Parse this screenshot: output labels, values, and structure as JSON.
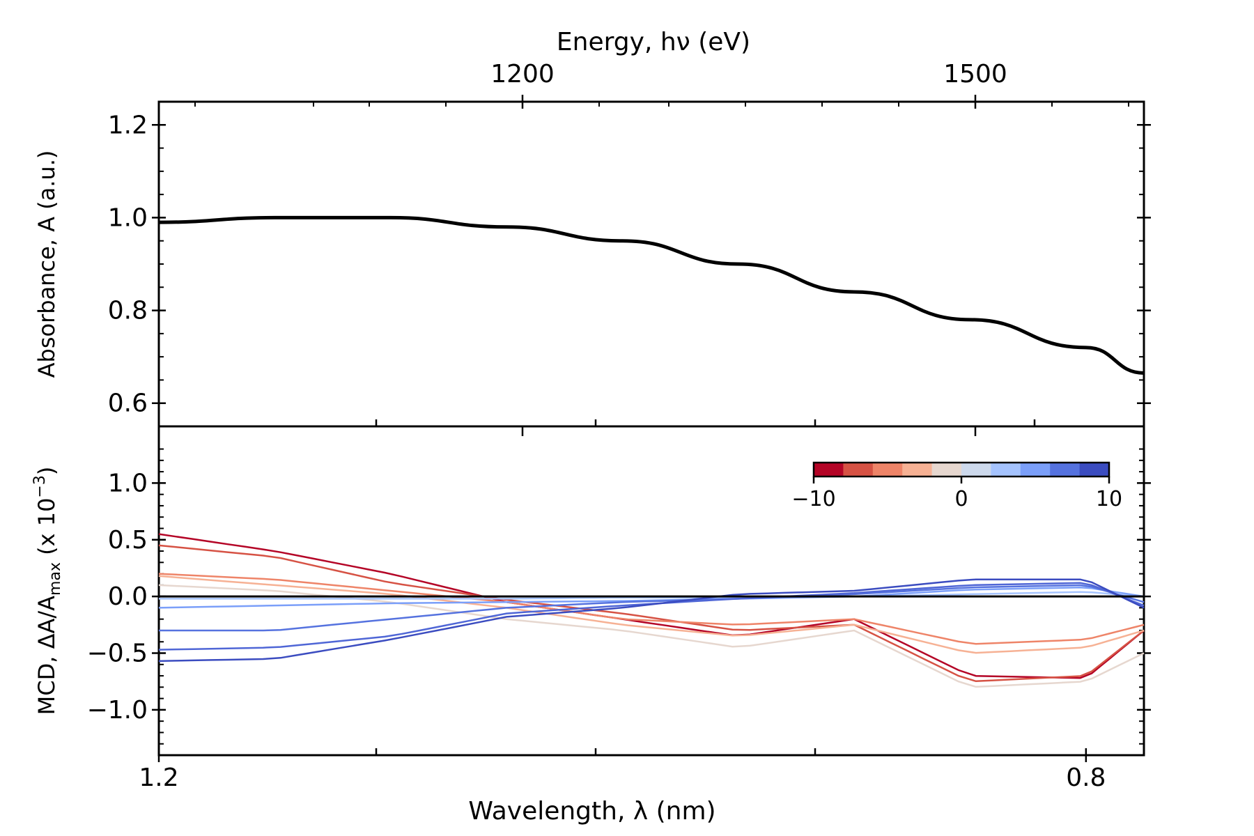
{
  "chart_data": [
    {
      "type": "line",
      "panel": "top",
      "top_axis_label": "Energy, hν (eV)",
      "top_ticks": [
        "1200",
        "1500"
      ],
      "ylabel": "Absorbance, A (a.u.)",
      "ylim": [
        0.55,
        1.25
      ],
      "ytick_labels": [
        "0.6",
        "0.8",
        "1.0",
        "1.2"
      ],
      "x": [
        1.2,
        1.15,
        1.1,
        1.05,
        1.0,
        0.95,
        0.9,
        0.85,
        0.8,
        0.775
      ],
      "series": [
        {
          "color": "#000000",
          "values": [
            0.99,
            1.0,
            1.0,
            0.98,
            0.95,
            0.9,
            0.84,
            0.78,
            0.72,
            0.665
          ]
        }
      ]
    },
    {
      "type": "line",
      "panel": "bottom",
      "xlabel": "Wavelength, λ (nm)",
      "xtick_labels": [
        "1.2",
        "0.8"
      ],
      "xlim": [
        1.2,
        0.775
      ],
      "ylabel": "MCD, ΔA/A",
      "ylabel_subscript": "max",
      "ylabel_suffix": " (x 10",
      "ylabel_exponent": "−3",
      "ylabel_end": ")",
      "ylim": [
        -1.4,
        1.5
      ],
      "ytick_labels": [
        "−1.0",
        "−0.5",
        "0.0",
        "0.5",
        "1.0"
      ],
      "x": [
        1.2,
        1.15,
        1.1,
        1.05,
        1.0,
        0.95,
        0.9,
        0.85,
        0.8,
        0.775
      ],
      "colorbar": {
        "colors": [
          "#b40426",
          "#d65244",
          "#ee8468",
          "#f6b194",
          "#e6d7cf",
          "#cdd9ec",
          "#a5c3fe",
          "#7b9ff9",
          "#5572df",
          "#3b4cc0"
        ],
        "tick_labels": [
          "−10",
          "0",
          "10"
        ],
        "range": [
          -10,
          10
        ]
      },
      "zero_line": {
        "color": "#000000",
        "y": 0
      },
      "series": [
        {
          "color": "#b40426",
          "values": [
            0.55,
            0.4,
            0.2,
            -0.05,
            -0.2,
            -0.35,
            -0.2,
            -0.7,
            -0.72,
            -0.3
          ]
        },
        {
          "color": "#d65244",
          "values": [
            0.45,
            0.35,
            0.12,
            -0.03,
            -0.15,
            -0.3,
            -0.25,
            -0.75,
            -0.7,
            -0.3
          ]
        },
        {
          "color": "#ee8468",
          "values": [
            0.2,
            0.15,
            0.05,
            -0.05,
            -0.2,
            -0.25,
            -0.2,
            -0.42,
            -0.38,
            -0.25
          ]
        },
        {
          "color": "#f6b194",
          "values": [
            0.18,
            0.1,
            0.02,
            -0.1,
            -0.25,
            -0.35,
            -0.25,
            -0.5,
            -0.45,
            -0.3
          ]
        },
        {
          "color": "#e6d7cf",
          "values": [
            0.1,
            0.05,
            -0.05,
            -0.2,
            -0.3,
            -0.45,
            -0.3,
            -0.8,
            -0.75,
            -0.5
          ]
        },
        {
          "color": "#a5c3fe",
          "values": [
            -0.02,
            -0.02,
            -0.02,
            -0.02,
            -0.01,
            -0.01,
            0.0,
            0.02,
            0.04,
            0.0
          ]
        },
        {
          "color": "#7b9ff9",
          "values": [
            -0.1,
            -0.08,
            -0.06,
            -0.05,
            -0.04,
            -0.02,
            0.0,
            0.06,
            0.08,
            0.0
          ]
        },
        {
          "color": "#5572df",
          "values": [
            -0.3,
            -0.3,
            -0.2,
            -0.1,
            -0.05,
            -0.02,
            0.02,
            0.08,
            0.1,
            -0.05
          ]
        },
        {
          "color": "#4f66d6",
          "values": [
            -0.47,
            -0.45,
            -0.35,
            -0.15,
            -0.08,
            -0.02,
            0.03,
            0.1,
            0.12,
            -0.08
          ]
        },
        {
          "color": "#3b4cc0",
          "values": [
            -0.57,
            -0.55,
            -0.38,
            -0.18,
            -0.1,
            0.02,
            0.05,
            0.15,
            0.15,
            -0.1
          ]
        }
      ]
    }
  ]
}
